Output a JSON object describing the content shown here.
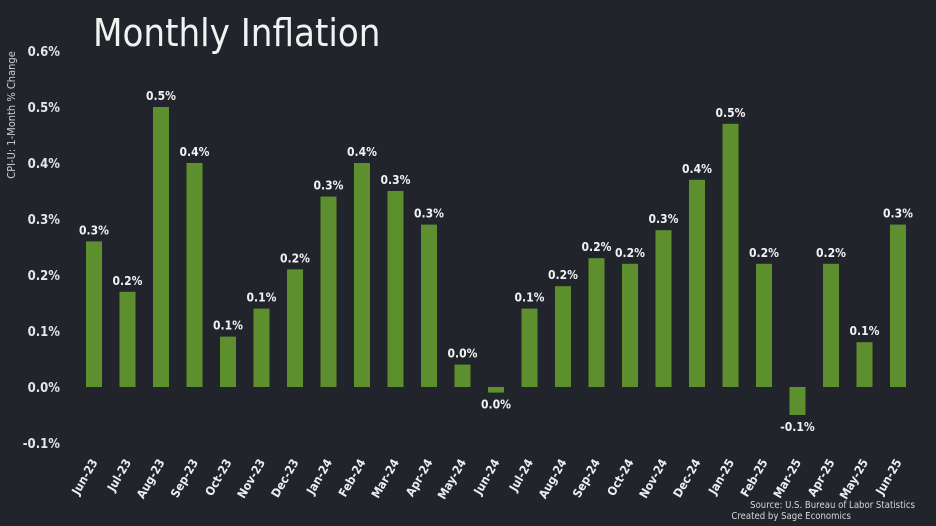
{
  "chart_data": {
    "type": "bar",
    "title": "Monthly Inflation",
    "ylabel": "CPI-U: 1-Month % Change",
    "xlabel": "",
    "ylim": [
      -0.1,
      0.6
    ],
    "yticks": [
      "-0.1%",
      "0.0%",
      "0.1%",
      "0.2%",
      "0.3%",
      "0.4%",
      "0.5%",
      "0.6%"
    ],
    "grid": false,
    "categories": [
      "Jun-23",
      "Jul-23",
      "Aug-23",
      "Sep-23",
      "Oct-23",
      "Nov-23",
      "Dec-23",
      "Jan-24",
      "Feb-24",
      "Mar-24",
      "Apr-24",
      "May-24",
      "Jun-24",
      "Jul-24",
      "Aug-24",
      "Sep-24",
      "Oct-24",
      "Nov-24",
      "Dec-24",
      "Jan-25",
      "Feb-25",
      "Mar-25",
      "Apr-25",
      "May-25",
      "Jun-25"
    ],
    "values": [
      0.26,
      0.17,
      0.5,
      0.4,
      0.09,
      0.14,
      0.21,
      0.34,
      0.4,
      0.35,
      0.29,
      0.04,
      -0.01,
      0.14,
      0.18,
      0.23,
      0.22,
      0.28,
      0.37,
      0.47,
      0.22,
      -0.05,
      0.22,
      0.08,
      0.29
    ],
    "data_labels": [
      "0.3%",
      "0.2%",
      "0.5%",
      "0.4%",
      "0.1%",
      "0.1%",
      "0.2%",
      "0.3%",
      "0.4%",
      "0.3%",
      "0.3%",
      "0.0%",
      "0.0%",
      "0.1%",
      "0.2%",
      "0.2%",
      "0.2%",
      "0.3%",
      "0.4%",
      "0.5%",
      "0.2%",
      "-0.1%",
      "0.2%",
      "0.1%",
      "0.3%"
    ],
    "bar_color": "#5e8f2e",
    "background_color": "#22242b"
  },
  "source": {
    "line1": "Source: U.S. Bureau of Labor Statistics",
    "line2": "Created by Sage Economics"
  }
}
